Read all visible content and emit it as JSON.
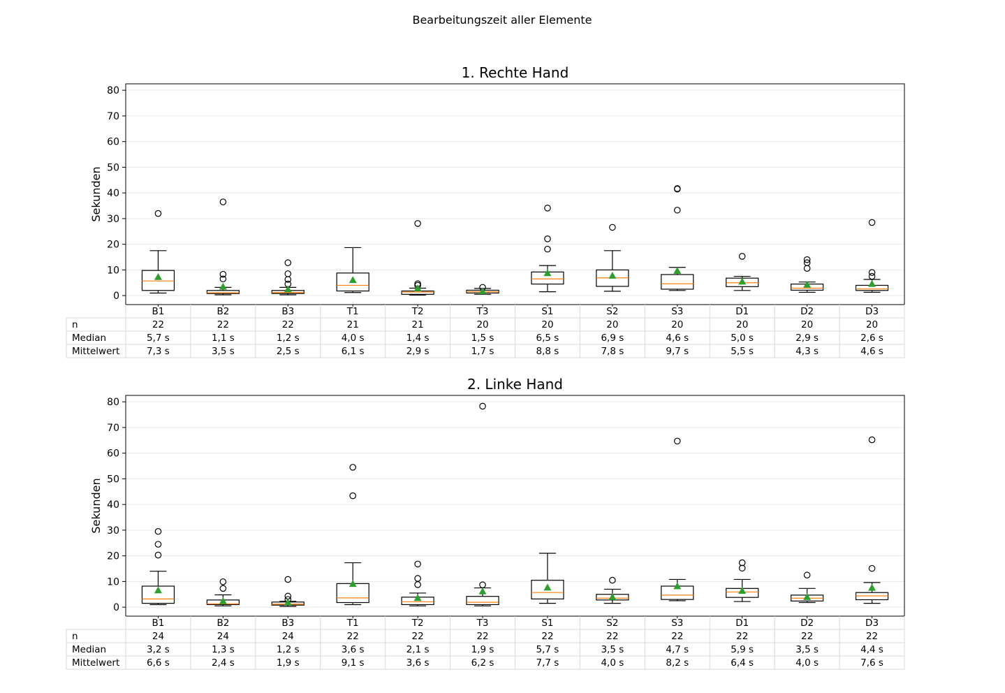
{
  "figure_title": "Bearbeitungszeit aller Elemente",
  "table_row_labels": [
    "n",
    "Median",
    "Mittelwert"
  ],
  "colors": {
    "median": "#ff7f0e",
    "mean": "#2ca02c",
    "box": "#000000",
    "grid": "#e6e6e6",
    "table_border": "#d9d9d9"
  },
  "chart_data": [
    {
      "type": "boxplot",
      "title": "1. Rechte Hand",
      "ylabel": "Sekunden",
      "ylim": [
        -3.5,
        82.5
      ],
      "yticks": [
        0,
        10,
        20,
        30,
        40,
        50,
        60,
        70,
        80
      ],
      "grid": "horizontal",
      "categories": [
        "B1",
        "B2",
        "B3",
        "T1",
        "T2",
        "T3",
        "S1",
        "S2",
        "S3",
        "D1",
        "D2",
        "D3"
      ],
      "boxes": [
        {
          "whislo": 1.0,
          "q1": 2.0,
          "med": 5.7,
          "q3": 9.8,
          "whishi": 17.5,
          "mean": 7.3,
          "fliers": [
            32
          ]
        },
        {
          "whislo": 0.3,
          "q1": 0.8,
          "med": 1.1,
          "q3": 2.0,
          "whishi": 3.2,
          "mean": 3.5,
          "fliers": [
            6.5,
            8.3,
            36.5
          ]
        },
        {
          "whislo": 0.3,
          "q1": 0.8,
          "med": 1.2,
          "q3": 2.0,
          "whishi": 3.2,
          "mean": 2.5,
          "fliers": [
            4.5,
            6.3,
            8.5,
            12.8
          ]
        },
        {
          "whislo": 1.2,
          "q1": 1.8,
          "med": 4.0,
          "q3": 8.8,
          "whishi": 18.7,
          "mean": 6.1,
          "fliers": []
        },
        {
          "whislo": 0.2,
          "q1": 0.5,
          "med": 1.4,
          "q3": 1.8,
          "whishi": 2.9,
          "mean": 2.9,
          "fliers": [
            4.0,
            4.6,
            28.1
          ]
        },
        {
          "whislo": 0.5,
          "q1": 1.0,
          "med": 1.5,
          "q3": 2.1,
          "whishi": 2.8,
          "mean": 1.7,
          "fliers": [
            3.2
          ]
        },
        {
          "whislo": 1.5,
          "q1": 4.5,
          "med": 6.5,
          "q3": 9.2,
          "whishi": 11.7,
          "mean": 8.8,
          "fliers": [
            18.1,
            22.1,
            34.1
          ]
        },
        {
          "whislo": 1.7,
          "q1": 3.6,
          "med": 6.9,
          "q3": 10.0,
          "whishi": 17.5,
          "mean": 7.8,
          "fliers": [
            26.6
          ]
        },
        {
          "whislo": 2.0,
          "q1": 2.5,
          "med": 4.6,
          "q3": 8.2,
          "whishi": 11.0,
          "mean": 9.7,
          "fliers": [
            33.3,
            41.5,
            41.7
          ]
        },
        {
          "whislo": 2.0,
          "q1": 3.5,
          "med": 5.0,
          "q3": 6.8,
          "whishi": 7.5,
          "mean": 5.5,
          "fliers": [
            15.3
          ]
        },
        {
          "whislo": 1.3,
          "q1": 2.1,
          "med": 2.9,
          "q3": 4.5,
          "whishi": 5.3,
          "mean": 4.3,
          "fliers": [
            10.6,
            12.8,
            14.0
          ]
        },
        {
          "whislo": 1.3,
          "q1": 2.0,
          "med": 2.6,
          "q3": 4.0,
          "whishi": 6.3,
          "mean": 4.6,
          "fliers": [
            7.5,
            9.0,
            28.5
          ]
        }
      ],
      "table": {
        "n": [
          "22",
          "22",
          "22",
          "21",
          "21",
          "20",
          "20",
          "20",
          "20",
          "20",
          "20",
          "20"
        ],
        "median": [
          "5,7 s",
          "1,1 s",
          "1,2 s",
          "4,0 s",
          "1,4 s",
          "1,5 s",
          "6,5 s",
          "6,9 s",
          "4,6 s",
          "5,0 s",
          "2,9 s",
          "2,6 s"
        ],
        "mean": [
          "7,3 s",
          "3,5 s",
          "2,5 s",
          "6,1 s",
          "2,9 s",
          "1,7 s",
          "8,8 s",
          "7,8 s",
          "9,7 s",
          "5,5 s",
          "4,3 s",
          "4,6 s"
        ]
      }
    },
    {
      "type": "boxplot",
      "title": "2. Linke Hand",
      "ylabel": "Sekunden",
      "ylim": [
        -3.5,
        82.5
      ],
      "yticks": [
        0,
        10,
        20,
        30,
        40,
        50,
        60,
        70,
        80
      ],
      "grid": "horizontal",
      "categories": [
        "B1",
        "B2",
        "B3",
        "T1",
        "T2",
        "T3",
        "S1",
        "S2",
        "S3",
        "D1",
        "D2",
        "D3"
      ],
      "boxes": [
        {
          "whislo": 1.0,
          "q1": 1.5,
          "med": 3.2,
          "q3": 8.2,
          "whishi": 14.0,
          "mean": 6.6,
          "fliers": [
            20.3,
            24.5,
            29.5
          ]
        },
        {
          "whislo": 0.5,
          "q1": 1.0,
          "med": 1.3,
          "q3": 2.8,
          "whishi": 4.8,
          "mean": 2.4,
          "fliers": [
            7.3,
            9.9
          ]
        },
        {
          "whislo": 0.3,
          "q1": 0.8,
          "med": 1.2,
          "q3": 2.0,
          "whishi": 2.3,
          "mean": 1.9,
          "fliers": [
            3.0,
            4.3,
            10.8
          ]
        },
        {
          "whislo": 1.0,
          "q1": 1.8,
          "med": 3.6,
          "q3": 9.2,
          "whishi": 17.3,
          "mean": 9.1,
          "fliers": [
            43.4,
            54.5
          ]
        },
        {
          "whislo": 0.5,
          "q1": 1.0,
          "med": 2.1,
          "q3": 3.9,
          "whishi": 5.5,
          "mean": 3.6,
          "fliers": [
            8.8,
            11.2,
            16.8
          ]
        },
        {
          "whislo": 0.5,
          "q1": 1.0,
          "med": 1.9,
          "q3": 4.2,
          "whishi": 7.5,
          "mean": 6.2,
          "fliers": [
            8.7,
            78.3
          ]
        },
        {
          "whislo": 1.5,
          "q1": 3.2,
          "med": 5.7,
          "q3": 10.5,
          "whishi": 21.0,
          "mean": 7.7,
          "fliers": []
        },
        {
          "whislo": 1.5,
          "q1": 2.8,
          "med": 3.5,
          "q3": 5.0,
          "whishi": 7.0,
          "mean": 4.0,
          "fliers": [
            10.5
          ]
        },
        {
          "whislo": 2.5,
          "q1": 3.0,
          "med": 4.7,
          "q3": 8.2,
          "whishi": 10.8,
          "mean": 8.2,
          "fliers": [
            64.7
          ]
        },
        {
          "whislo": 2.2,
          "q1": 3.8,
          "med": 5.9,
          "q3": 7.3,
          "whishi": 10.8,
          "mean": 6.4,
          "fliers": [
            15.2,
            17.3
          ]
        },
        {
          "whislo": 1.8,
          "q1": 2.4,
          "med": 3.5,
          "q3": 4.7,
          "whishi": 7.3,
          "mean": 4.0,
          "fliers": [
            12.5
          ]
        },
        {
          "whislo": 1.5,
          "q1": 2.9,
          "med": 4.4,
          "q3": 5.7,
          "whishi": 9.6,
          "mean": 7.6,
          "fliers": [
            15.1,
            65.2
          ]
        }
      ],
      "table": {
        "n": [
          "24",
          "24",
          "24",
          "22",
          "22",
          "22",
          "22",
          "22",
          "22",
          "22",
          "22",
          "22"
        ],
        "median": [
          "3,2 s",
          "1,3 s",
          "1,2 s",
          "3,6 s",
          "2,1 s",
          "1,9 s",
          "5,7 s",
          "3,5 s",
          "4,7 s",
          "5,9 s",
          "3,5 s",
          "4,4 s"
        ],
        "mean": [
          "6,6 s",
          "2,4 s",
          "1,9 s",
          "9,1 s",
          "3,6 s",
          "6,2 s",
          "7,7 s",
          "4,0 s",
          "8,2 s",
          "6,4 s",
          "4,0 s",
          "7,6 s"
        ]
      }
    }
  ]
}
